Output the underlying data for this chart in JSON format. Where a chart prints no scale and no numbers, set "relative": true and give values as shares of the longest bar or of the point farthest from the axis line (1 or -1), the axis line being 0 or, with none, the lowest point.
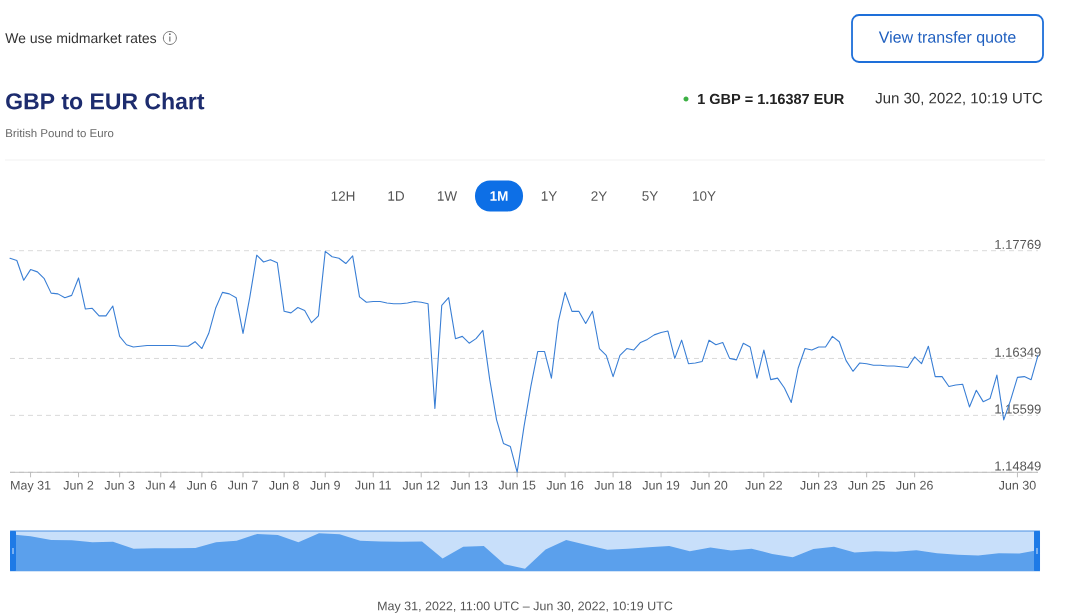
{
  "chart_data": [
    {
      "type": "line",
      "title": "GBP to EUR Chart",
      "subtitle": "British Pound to Euro",
      "annotations": [
        "We use midmarket rates",
        "View transfer quote",
        "1 GBP = 1.16387 EUR",
        "Jun 30, 2022, 10:19 UTC",
        "12H",
        "1D",
        "1W",
        "1M",
        "1Y",
        "2Y",
        "5Y",
        "10Y"
      ],
      "categories": [
        null,
        null,
        null,
        "May 31",
        null,
        null,
        null,
        null,
        null,
        null,
        "Jun 2",
        null,
        null,
        null,
        null,
        null,
        "Jun 3",
        null,
        null,
        null,
        null,
        null,
        "Jun 4",
        null,
        null,
        null,
        null,
        null,
        "Jun 6",
        null,
        null,
        null,
        null,
        null,
        "Jun 7",
        null,
        null,
        null,
        null,
        null,
        "Jun 8",
        null,
        null,
        null,
        null,
        null,
        "Jun 9",
        null,
        null,
        null,
        null,
        null,
        null,
        "Jun 11",
        null,
        null,
        null,
        null,
        null,
        null,
        "Jun 12",
        null,
        null,
        null,
        null,
        null,
        null,
        "Jun 13",
        null,
        null,
        null,
        null,
        null,
        null,
        "Jun 15",
        null,
        null,
        null,
        null,
        null,
        null,
        "Jun 16",
        null,
        null,
        null,
        null,
        null,
        null,
        "Jun 18",
        null,
        null,
        null,
        null,
        null,
        null,
        "Jun 19",
        null,
        null,
        null,
        null,
        null,
        null,
        "Jun 20",
        null,
        null,
        null,
        null,
        null,
        null,
        null,
        "Jun 22",
        null,
        null,
        null,
        null,
        null,
        null,
        null,
        "Jun 23",
        null,
        null,
        null,
        null,
        null,
        null,
        "Jun 25",
        null,
        null,
        null,
        null,
        null,
        null,
        "Jun 26",
        null,
        null,
        null,
        null,
        null,
        null,
        null,
        null,
        null,
        null,
        null,
        null,
        null,
        null,
        "Jun 30",
        null,
        null,
        null
      ],
      "values": [
        1.1767,
        1.1764,
        1.1738,
        1.1752,
        1.1749,
        1.174,
        1.1721,
        1.172,
        1.1715,
        1.1718,
        1.1741,
        1.17,
        1.1701,
        1.1691,
        1.1691,
        1.1704,
        1.1664,
        1.1653,
        1.165,
        1.1651,
        1.1652,
        1.1652,
        1.1652,
        1.1652,
        1.1652,
        1.1651,
        1.1651,
        1.1657,
        1.1648,
        1.1668,
        1.1701,
        1.1722,
        1.172,
        1.1715,
        1.1668,
        1.1716,
        1.1771,
        1.1762,
        1.1765,
        1.1761,
        1.1697,
        1.1695,
        1.1702,
        1.1698,
        1.1682,
        1.1691,
        1.1776,
        1.1769,
        1.1767,
        1.176,
        1.177,
        1.1716,
        1.1709,
        1.171,
        1.171,
        1.1708,
        1.1707,
        1.1707,
        1.1708,
        1.171,
        1.1709,
        1.1707,
        1.1569,
        1.1705,
        1.1715,
        1.1661,
        1.1664,
        1.1655,
        1.1661,
        1.1672,
        1.1607,
        1.1554,
        1.1523,
        1.1519,
        1.1485,
        1.1545,
        1.1598,
        1.1644,
        1.1644,
        1.1609,
        1.1683,
        1.1722,
        1.1697,
        1.1697,
        1.1681,
        1.1697,
        1.1648,
        1.1639,
        1.1611,
        1.1639,
        1.1648,
        1.1646,
        1.1656,
        1.166,
        1.1666,
        1.1669,
        1.1671,
        1.1635,
        1.1659,
        1.1628,
        1.1629,
        1.1631,
        1.1659,
        1.1653,
        1.1656,
        1.1635,
        1.1633,
        1.1655,
        1.165,
        1.1609,
        1.1646,
        1.1607,
        1.1609,
        1.1596,
        1.1577,
        1.1622,
        1.1648,
        1.1646,
        1.165,
        1.165,
        1.1664,
        1.1657,
        1.1632,
        1.1618,
        1.1629,
        1.1628,
        1.1626,
        1.1626,
        1.1625,
        1.1625,
        1.1624,
        1.1623,
        1.1637,
        1.1628,
        1.1651,
        1.1611,
        1.1611,
        1.1598,
        1.16,
        1.1601,
        1.1571,
        1.1593,
        1.1578,
        1.1582,
        1.1613,
        1.1554,
        1.158,
        1.161,
        1.1611,
        1.1607,
        1.1639
      ],
      "color": "#3a7fd5",
      "ylim": [
        1.14849,
        1.17769
      ],
      "yticks": [
        1.14849,
        1.15599,
        1.16349,
        1.17769
      ],
      "grid": "y"
    },
    {
      "type": "area",
      "relative": true,
      "xlabel": "May 31, 2022, 11:00 UTC – Jun 30, 2022, 10:19 UTC",
      "categories": [
        null,
        null,
        null,
        null,
        null,
        null,
        null,
        null,
        null,
        null,
        null,
        null,
        null,
        null,
        null,
        null,
        null,
        null,
        null,
        null,
        null,
        null,
        null,
        null,
        null,
        null,
        null,
        null,
        null,
        null,
        null,
        null,
        null,
        null,
        null,
        null,
        null,
        null,
        null,
        null,
        null,
        null,
        null,
        null,
        null,
        null,
        null,
        null,
        null,
        null,
        null
      ],
      "values": [
        0.97,
        0.92,
        0.82,
        0.81,
        0.76,
        0.77,
        0.59,
        0.6,
        0.6,
        0.61,
        0.76,
        0.8,
        0.98,
        0.95,
        0.76,
        1.0,
        0.97,
        0.8,
        0.78,
        0.77,
        0.78,
        0.33,
        0.64,
        0.66,
        0.18,
        0.06,
        0.57,
        0.82,
        0.69,
        0.56,
        0.59,
        0.63,
        0.66,
        0.52,
        0.62,
        0.54,
        0.59,
        0.45,
        0.36,
        0.58,
        0.64,
        0.49,
        0.52,
        0.51,
        0.55,
        0.47,
        0.43,
        0.41,
        0.47,
        0.46,
        0.56
      ],
      "color": "#5ba0ec"
    }
  ]
}
